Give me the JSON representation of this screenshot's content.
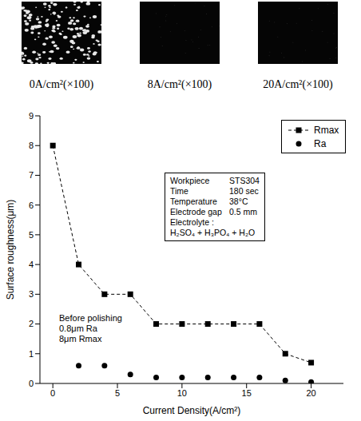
{
  "image_captions": [
    "0A/cm²(×100)",
    "8A/cm²(×100)",
    "20A/cm²(×100)"
  ],
  "chart_data": {
    "type": "line",
    "x_label": "Current Density(A/cm²)",
    "y_label": "Surface roughness(μm)",
    "x": [
      0,
      2,
      4,
      6,
      8,
      10,
      12,
      14,
      16,
      18,
      20
    ],
    "series": [
      {
        "name": "Rmax",
        "color": "#000000",
        "marker": "square",
        "line_style": "dashed",
        "values": [
          8,
          4,
          3,
          3,
          2,
          2,
          2,
          2,
          2,
          1,
          0.7
        ]
      },
      {
        "name": "Ra",
        "color": "#000000",
        "marker": "circle",
        "line_style": "none",
        "values": [
          null,
          0.6,
          0.6,
          0.3,
          0.2,
          0.2,
          0.2,
          0.2,
          0.2,
          0.1,
          0.05
        ]
      }
    ],
    "xlim": [
      -1,
      22.5
    ],
    "xticks": [
      0,
      5,
      10,
      15,
      20
    ],
    "ylim": [
      0,
      9
    ],
    "yticks": [
      0,
      1,
      2,
      3,
      4,
      5,
      6,
      7,
      8,
      9
    ],
    "legend": "upper right",
    "grid": false,
    "annotations": [
      {
        "lines": [
          "Workpiece",
          "Time",
          "Temperature",
          "Electrode gap",
          "Electrolyte :",
          "H₂SO₄ + H₃PO₄ + H₂O"
        ],
        "values": [
          "STS304",
          "180 sec",
          "38°C",
          "0.5 mm",
          "",
          ""
        ]
      },
      {
        "lines": [
          "Before polishing",
          "0.8μm Ra",
          "8μm Rmax"
        ]
      }
    ]
  }
}
